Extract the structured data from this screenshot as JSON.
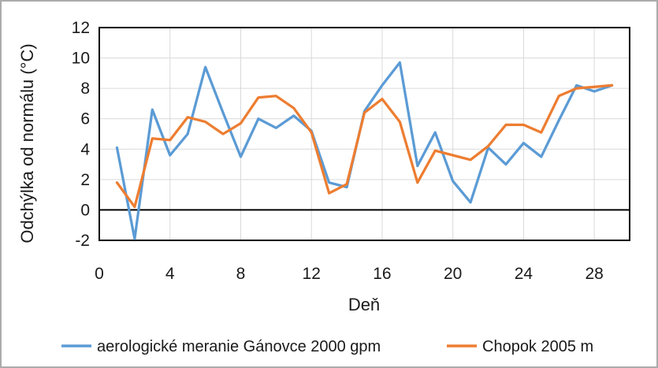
{
  "window": {
    "background": "#ffffff",
    "frame_border_color": "#ababab"
  },
  "chart_data": {
    "type": "line",
    "title": "",
    "xlabel": "Deň",
    "ylabel": "Odchýlka od normálu (°C)",
    "xlim": [
      0,
      30
    ],
    "ylim": [
      -2,
      12
    ],
    "x_ticks": [
      0,
      4,
      8,
      12,
      16,
      20,
      24,
      28
    ],
    "y_ticks": [
      12,
      10,
      8,
      6,
      4,
      2,
      0,
      -2
    ],
    "grid": true,
    "zero_axis_line": true,
    "legend_position": "bottom",
    "x": [
      1,
      2,
      3,
      4,
      5,
      6,
      7,
      8,
      9,
      10,
      11,
      12,
      13,
      14,
      15,
      16,
      17,
      18,
      19,
      20,
      21,
      22,
      23,
      24,
      25,
      26,
      27,
      28,
      29
    ],
    "series": [
      {
        "name": "aerologické meranie Gánovce 2000 gpm",
        "color": "#5B9BD5",
        "values": [
          4.1,
          -1.9,
          6.6,
          3.6,
          5.0,
          9.4,
          6.4,
          3.5,
          6.0,
          5.4,
          6.2,
          5.2,
          1.8,
          1.5,
          6.5,
          8.2,
          9.7,
          2.9,
          5.1,
          1.9,
          0.5,
          4.1,
          3.0,
          4.4,
          3.5,
          5.9,
          8.2,
          7.8,
          8.2
        ]
      },
      {
        "name": "Chopok 2005 m",
        "color": "#ED7D31",
        "values": [
          1.8,
          0.2,
          4.7,
          4.6,
          6.1,
          5.8,
          5.0,
          5.7,
          7.4,
          7.5,
          6.7,
          5.1,
          1.1,
          1.7,
          6.4,
          7.3,
          5.8,
          1.8,
          3.9,
          3.6,
          3.3,
          4.2,
          5.6,
          5.6,
          5.1,
          7.5,
          8.0,
          8.1,
          8.2
        ]
      }
    ],
    "style_colors": {
      "gridline": "#D9D9D9",
      "plot_border": "#000000",
      "zero_line": "#000000",
      "text": "#1a1a1a"
    }
  }
}
